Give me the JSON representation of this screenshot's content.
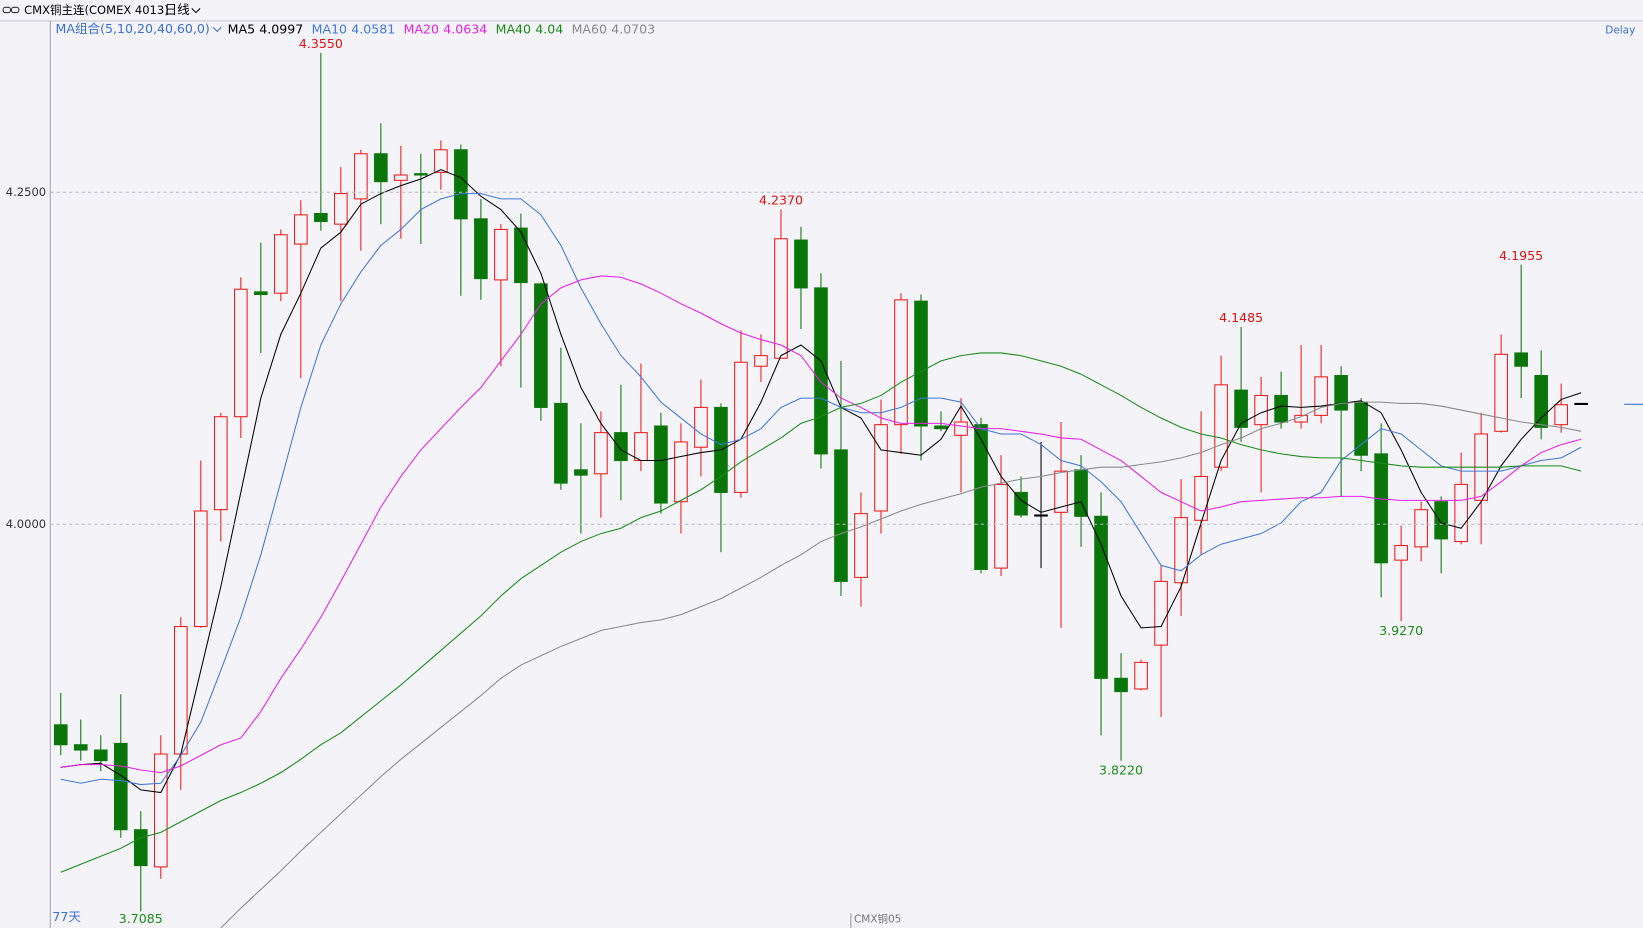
{
  "chart_data": {
    "type": "candlestick",
    "title": "CMX铜主连(COMEX 4013)",
    "period": "日线",
    "ma_group_label": "MA组合(5,10,20,40,60,0)",
    "status": "Delay",
    "count_label": "77天",
    "contract_label": "CMX铜05",
    "up_color": "#f01818",
    "down_color": "#0a760a",
    "doji_color": "#000000",
    "high_label_color": "#e01010",
    "low_label_color": "#1a8a1a",
    "grid": true,
    "ylim": [
      3.696,
      4.379
    ],
    "yticks": [
      {
        "value": 4.25,
        "label": "4.2500"
      },
      {
        "value": 4.0,
        "label": "4.0000"
      }
    ],
    "categories": [
      null,
      null,
      null,
      null,
      null,
      null,
      null,
      null,
      null,
      null,
      null,
      null,
      null,
      null,
      null,
      null,
      null,
      null,
      null,
      null,
      null,
      null,
      null,
      null,
      null,
      null,
      null,
      null,
      null,
      null,
      null,
      null,
      null,
      null,
      null,
      null,
      null,
      null,
      null,
      null,
      null,
      null,
      null,
      null,
      null,
      null,
      null,
      null,
      null,
      null,
      null,
      null,
      null,
      null,
      null,
      null,
      null,
      null,
      null,
      null,
      null,
      null,
      null,
      null,
      null,
      null,
      null,
      null,
      null,
      null,
      null,
      null,
      null,
      null,
      null,
      null,
      null
    ],
    "open": [
      3.849,
      3.834,
      3.83,
      3.835,
      3.77,
      3.742,
      3.827,
      3.923,
      4.011,
      4.081,
      4.175,
      4.174,
      4.211,
      4.234,
      4.226,
      4.245,
      4.279,
      4.259,
      4.264,
      4.265,
      4.282,
      4.23,
      4.184,
      4.223,
      4.181,
      4.091,
      4.041,
      4.038,
      4.069,
      4.048,
      4.074,
      4.017,
      4.058,
      4.088,
      4.024,
      4.119,
      4.125,
      4.214,
      4.178,
      4.056,
      3.96,
      4.01,
      4.075,
      4.168,
      4.074,
      4.067,
      4.075,
      3.967,
      4.024,
      4.007,
      4.009,
      4.041,
      4.006,
      3.884,
      3.876,
      3.909,
      3.956,
      4.003,
      4.043,
      4.101,
      4.075,
      4.097,
      4.077,
      4.082,
      4.112,
      4.092,
      4.053,
      3.973,
      3.983,
      4.017,
      3.987,
      4.018,
      4.07,
      4.129,
      4.112,
      4.075,
      4.091
    ],
    "high": [
      3.873,
      3.853,
      3.841,
      3.872,
      3.784,
      3.841,
      3.93,
      4.048,
      4.084,
      4.186,
      4.212,
      4.222,
      4.244,
      4.355,
      4.269,
      4.282,
      4.302,
      4.285,
      4.279,
      4.289,
      4.286,
      4.245,
      4.226,
      4.234,
      4.182,
      4.133,
      4.076,
      4.085,
      4.105,
      4.121,
      4.084,
      4.076,
      4.109,
      4.091,
      4.146,
      4.143,
      4.237,
      4.224,
      4.189,
      4.123,
      4.024,
      4.094,
      4.174,
      4.173,
      4.085,
      4.095,
      4.08,
      4.052,
      4.036,
      4.062,
      4.077,
      4.052,
      4.024,
      3.903,
      3.898,
      3.969,
      4.034,
      4.085,
      4.127,
      4.1485,
      4.111,
      4.115,
      4.135,
      4.135,
      4.119,
      4.095,
      4.076,
      3.999,
      4.017,
      4.021,
      4.054,
      4.084,
      4.143,
      4.1955,
      4.131,
      4.106,
      4.091
    ],
    "low": [
      3.826,
      3.822,
      3.814,
      3.764,
      3.7085,
      3.733,
      3.8,
      3.922,
      3.987,
      4.065,
      4.129,
      4.168,
      4.11,
      4.221,
      4.168,
      4.206,
      4.226,
      4.215,
      4.211,
      4.252,
      4.172,
      4.169,
      4.119,
      4.103,
      4.078,
      4.026,
      3.993,
      4.005,
      4.018,
      4.04,
      4.008,
      3.993,
      4.036,
      3.979,
      4.02,
      4.107,
      4.125,
      4.147,
      4.042,
      3.946,
      3.938,
      3.993,
      4.053,
      4.048,
      4.07,
      4.024,
      3.963,
      3.961,
      4.005,
      3.967,
      3.922,
      3.983,
      3.841,
      3.822,
      3.875,
      3.855,
      3.931,
      3.977,
      4.04,
      4.062,
      4.024,
      4.072,
      4.072,
      4.076,
      4.021,
      4.04,
      3.945,
      3.927,
      3.972,
      3.963,
      3.985,
      3.985,
      4.069,
      4.095,
      4.064,
      4.069,
      4.091
    ],
    "close": [
      3.834,
      3.83,
      3.822,
      3.77,
      3.743,
      3.827,
      3.923,
      4.01,
      4.081,
      4.177,
      4.173,
      4.218,
      4.233,
      4.228,
      4.249,
      4.279,
      4.258,
      4.263,
      4.263,
      4.282,
      4.23,
      4.185,
      4.222,
      4.182,
      4.088,
      4.031,
      4.037,
      4.069,
      4.048,
      4.069,
      4.016,
      4.062,
      4.088,
      4.024,
      4.122,
      4.127,
      4.215,
      4.178,
      4.053,
      3.957,
      4.008,
      4.075,
      4.169,
      4.074,
      4.072,
      4.077,
      3.966,
      4.03,
      4.007,
      4.007,
      4.04,
      4.006,
      3.884,
      3.874,
      3.896,
      3.957,
      4.005,
      4.036,
      4.105,
      4.073,
      4.097,
      4.077,
      4.082,
      4.111,
      4.086,
      4.052,
      3.971,
      3.984,
      4.011,
      3.989,
      4.03,
      4.068,
      4.128,
      4.119,
      4.073,
      4.09,
      4.091
    ],
    "high_labels": [
      null,
      null,
      null,
      null,
      null,
      null,
      null,
      null,
      null,
      null,
      null,
      null,
      null,
      "4.3550",
      null,
      null,
      null,
      null,
      null,
      null,
      null,
      null,
      null,
      null,
      null,
      null,
      null,
      null,
      null,
      null,
      null,
      null,
      null,
      null,
      null,
      null,
      "4.2370",
      null,
      null,
      null,
      null,
      null,
      null,
      null,
      null,
      null,
      null,
      null,
      null,
      null,
      null,
      null,
      null,
      null,
      null,
      null,
      null,
      null,
      null,
      "4.1485",
      null,
      null,
      null,
      null,
      null,
      null,
      null,
      null,
      null,
      null,
      null,
      null,
      null,
      "4.1955",
      null,
      null,
      null
    ],
    "low_labels": [
      null,
      null,
      null,
      null,
      "3.7085",
      null,
      null,
      null,
      null,
      null,
      null,
      null,
      null,
      null,
      null,
      null,
      null,
      null,
      null,
      null,
      null,
      null,
      null,
      null,
      null,
      null,
      null,
      null,
      null,
      null,
      null,
      null,
      null,
      null,
      null,
      null,
      null,
      null,
      null,
      null,
      null,
      null,
      null,
      null,
      null,
      null,
      null,
      null,
      null,
      null,
      null,
      null,
      null,
      "3.8220",
      null,
      null,
      null,
      null,
      null,
      null,
      null,
      null,
      null,
      null,
      null,
      null,
      null,
      "3.9270",
      null,
      null,
      null,
      null,
      null,
      null,
      null,
      null,
      null
    ],
    "ma_group_color": "#3a6fd0",
    "series": [
      {
        "name": "MA5",
        "last_value": 4.0997,
        "color": "#000000",
        "values": [
          3.817,
          3.819,
          3.82,
          3.811,
          3.8,
          3.798,
          3.827,
          3.89,
          3.953,
          4.024,
          4.095,
          4.143,
          4.174,
          4.208,
          4.22,
          4.241,
          4.249,
          4.255,
          4.26,
          4.267,
          4.261,
          4.247,
          4.237,
          4.22,
          4.189,
          4.143,
          4.103,
          4.076,
          4.056,
          4.048,
          4.048,
          4.051,
          4.054,
          4.056,
          4.064,
          4.092,
          4.127,
          4.135,
          4.123,
          4.088,
          4.08,
          4.056,
          4.054,
          4.052,
          4.064,
          4.089,
          4.064,
          4.036,
          4.018,
          4.009,
          4.013,
          4.017,
          3.985,
          3.946,
          3.922,
          3.923,
          3.953,
          4.001,
          4.048,
          4.076,
          4.084,
          4.089,
          4.088,
          4.089,
          4.091,
          4.093,
          4.084,
          4.056,
          4.024,
          4.001,
          3.997,
          4.017,
          4.044,
          4.064,
          4.08,
          4.094,
          4.099
        ]
      },
      {
        "name": "MA10",
        "last_value": 4.0581,
        "color": "#3f78d8",
        "values": [
          3.808,
          3.805,
          3.808,
          3.807,
          3.804,
          3.805,
          3.826,
          3.851,
          3.89,
          3.93,
          3.977,
          4.032,
          4.088,
          4.135,
          4.166,
          4.19,
          4.21,
          4.222,
          4.237,
          4.245,
          4.249,
          4.249,
          4.245,
          4.245,
          4.233,
          4.21,
          4.178,
          4.151,
          4.127,
          4.111,
          4.092,
          4.08,
          4.068,
          4.06,
          4.064,
          4.072,
          4.088,
          4.095,
          4.095,
          4.088,
          4.084,
          4.084,
          4.088,
          4.095,
          4.095,
          4.092,
          4.072,
          4.068,
          4.068,
          4.06,
          4.048,
          4.044,
          4.032,
          4.017,
          3.993,
          3.969,
          3.965,
          3.977,
          3.985,
          3.989,
          3.993,
          4.001,
          4.017,
          4.024,
          4.048,
          4.06,
          4.072,
          4.068,
          4.056,
          4.044,
          4.04,
          4.04,
          4.04,
          4.044,
          4.048,
          4.05,
          4.058
        ]
      },
      {
        "name": "MA20",
        "last_value": 4.0634,
        "color": "#e81ee8",
        "values": [
          3.817,
          3.819,
          3.819,
          3.818,
          3.815,
          3.813,
          3.818,
          3.826,
          3.834,
          3.839,
          3.859,
          3.884,
          3.906,
          3.93,
          3.957,
          3.985,
          4.013,
          4.036,
          4.056,
          4.072,
          4.088,
          4.103,
          4.123,
          4.143,
          4.166,
          4.178,
          4.184,
          4.187,
          4.186,
          4.181,
          4.174,
          4.166,
          4.159,
          4.151,
          4.144,
          4.139,
          4.135,
          4.127,
          4.107,
          4.095,
          4.088,
          4.08,
          4.076,
          4.076,
          4.076,
          4.074,
          4.072,
          4.072,
          4.07,
          4.068,
          4.065,
          4.064,
          4.056,
          4.048,
          4.036,
          4.024,
          4.017,
          4.01,
          4.013,
          4.017,
          4.018,
          4.019,
          4.02,
          4.02,
          4.021,
          4.021,
          4.019,
          4.018,
          4.018,
          4.018,
          4.018,
          4.021,
          4.032,
          4.044,
          4.054,
          4.06,
          4.064
        ]
      },
      {
        "name": "MA40",
        "last_value": 4.04,
        "color": "#1a8a1a",
        "values": [
          3.738,
          3.744,
          3.75,
          3.756,
          3.764,
          3.768,
          3.776,
          3.784,
          3.792,
          3.798,
          3.805,
          3.813,
          3.823,
          3.834,
          3.843,
          3.855,
          3.867,
          3.879,
          3.892,
          3.905,
          3.918,
          3.931,
          3.946,
          3.959,
          3.969,
          3.979,
          3.987,
          3.993,
          3.997,
          4.005,
          4.01,
          4.018,
          4.026,
          4.036,
          4.047,
          4.056,
          4.065,
          4.076,
          4.081,
          4.088,
          4.091,
          4.097,
          4.107,
          4.115,
          4.123,
          4.127,
          4.129,
          4.129,
          4.127,
          4.123,
          4.119,
          4.113,
          4.105,
          4.097,
          4.088,
          4.08,
          4.073,
          4.068,
          4.065,
          4.06,
          4.056,
          4.053,
          4.051,
          4.05,
          4.05,
          4.048,
          4.046,
          4.044,
          4.043,
          4.043,
          4.043,
          4.043,
          4.043,
          4.044,
          4.044,
          4.044,
          4.04
        ]
      },
      {
        "name": "MA60",
        "last_value": 4.0703,
        "color": "#8a8a8a",
        "values": [
          null,
          null,
          null,
          null,
          null,
          null,
          null,
          null,
          3.696,
          3.711,
          3.725,
          3.739,
          3.754,
          3.768,
          3.782,
          3.796,
          3.81,
          3.823,
          3.835,
          3.847,
          3.859,
          3.871,
          3.884,
          3.894,
          3.901,
          3.908,
          3.914,
          3.92,
          3.923,
          3.926,
          3.928,
          3.932,
          3.938,
          3.944,
          3.952,
          3.96,
          3.969,
          3.977,
          3.987,
          3.993,
          3.998,
          4.004,
          4.01,
          4.015,
          4.019,
          4.023,
          4.028,
          4.031,
          4.034,
          4.036,
          4.039,
          4.041,
          4.043,
          4.043,
          4.045,
          4.047,
          4.05,
          4.054,
          4.06,
          4.065,
          4.072,
          4.076,
          4.081,
          4.088,
          4.091,
          4.092,
          4.092,
          4.091,
          4.091,
          4.089,
          4.086,
          4.083,
          4.08,
          4.077,
          4.075,
          4.073,
          4.07
        ]
      }
    ]
  }
}
